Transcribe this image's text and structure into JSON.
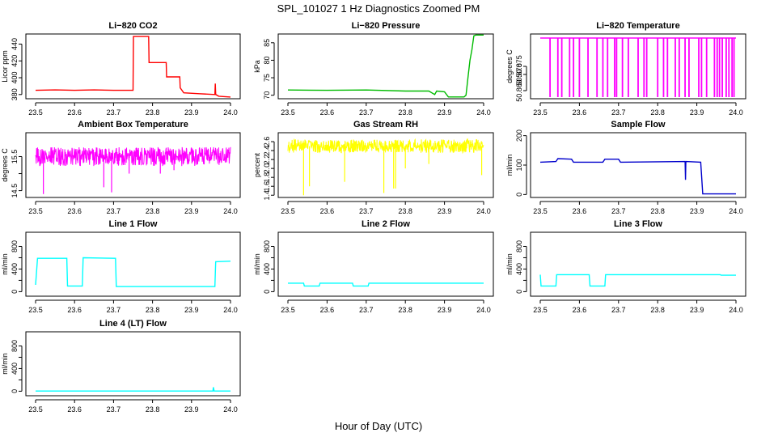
{
  "figure": {
    "title": "SPL_101027  1 Hz Diagnostics Zoomed PM",
    "xlabel": "Hour of Day (UTC)"
  },
  "chart_data": [
    {
      "type": "line",
      "title": "Li−820 CO2",
      "ylabel": "Licor ppm",
      "color": "#ff0000",
      "xlim": [
        23.5,
        24.0
      ],
      "ylim": [
        375,
        452
      ],
      "xticks": [
        "23.5",
        "23.6",
        "23.7",
        "23.8",
        "23.9",
        "24.0"
      ],
      "yticks": [
        {
          "v": 380,
          "label": "380"
        },
        {
          "v": 400,
          "label": "400"
        },
        {
          "v": 420,
          "label": "420"
        },
        {
          "v": 440,
          "label": "440"
        }
      ],
      "series": [
        {
          "x": [
            23.5,
            23.55,
            23.6,
            23.65,
            23.7,
            23.75,
            23.751,
            23.79,
            23.791,
            23.835,
            23.836,
            23.87,
            23.871,
            23.88,
            23.92,
            23.96,
            23.961,
            23.962,
            23.97,
            24.0
          ],
          "y": [
            385,
            385.5,
            385,
            385.5,
            385,
            385,
            449,
            449,
            418,
            418,
            401,
            401,
            388,
            382,
            381,
            380,
            393,
            380,
            378,
            377
          ]
        }
      ]
    },
    {
      "type": "line",
      "title": "Li−820 Pressure",
      "ylabel": "kPa",
      "color": "#00bb00",
      "xlim": [
        23.5,
        24.0
      ],
      "ylim": [
        69,
        87.5
      ],
      "xticks": [
        "23.5",
        "23.6",
        "23.7",
        "23.8",
        "23.9",
        "24.0"
      ],
      "yticks": [
        {
          "v": 70,
          "label": "70"
        },
        {
          "v": 75,
          "label": "75"
        },
        {
          "v": 80,
          "label": "80"
        },
        {
          "v": 85,
          "label": "85"
        }
      ],
      "series": [
        {
          "x": [
            23.5,
            23.6,
            23.7,
            23.8,
            23.86,
            23.875,
            23.88,
            23.9,
            23.91,
            23.95,
            23.955,
            23.96,
            23.965,
            23.97,
            23.975,
            23.98,
            24.0
          ],
          "y": [
            71.5,
            71.4,
            71.5,
            71.2,
            71.2,
            70.2,
            71.2,
            71,
            69.5,
            69.5,
            70,
            75,
            80,
            83,
            87,
            87.2,
            87.2
          ]
        }
      ]
    },
    {
      "type": "line",
      "title": "Li−820 Temperature",
      "ylabel": "degrees C",
      "color": "#ff00ff",
      "xlim": [
        23.5,
        24.0
      ],
      "ylim": [
        50.855,
        50.895
      ],
      "xticks": [
        "23.5",
        "23.6",
        "23.7",
        "23.8",
        "23.9",
        "24.0"
      ],
      "yticks": [
        {
          "v": 50.86,
          "label": "50.860"
        },
        {
          "v": 50.87,
          "label": "50.870"
        },
        {
          "v": 50.875,
          "label": "50.875"
        }
      ],
      "base": 50.8925,
      "low": 50.856,
      "spikes": [
        23.525,
        23.545,
        23.555,
        23.575,
        23.585,
        23.6,
        23.622,
        23.645,
        23.66,
        23.672,
        23.69,
        23.695,
        23.71,
        23.725,
        23.75,
        23.765,
        23.772,
        23.8,
        23.815,
        23.825,
        23.845,
        23.855,
        23.87,
        23.88,
        23.905,
        23.912,
        23.925,
        23.945,
        23.952,
        23.958,
        23.965,
        23.975,
        23.982,
        23.99,
        23.995
      ]
    },
    {
      "type": "line",
      "title": "Ambient Box Temperature",
      "ylabel": "degrees C",
      "color": "#ff00ff",
      "xlim": [
        23.5,
        24.0
      ],
      "ylim": [
        14.3,
        16.2
      ],
      "xticks": [
        "23.5",
        "23.6",
        "23.7",
        "23.8",
        "23.9",
        "24.0"
      ],
      "yticks": [
        {
          "v": 14.5,
          "label": "14.5"
        },
        {
          "v": 15.0,
          "label": ""
        },
        {
          "v": 15.5,
          "label": "15.5"
        }
      ],
      "noise": {
        "center": 15.5,
        "amp": 0.28,
        "n": 600
      },
      "spikes": [
        {
          "x": 23.52,
          "y": 14.4
        },
        {
          "x": 23.675,
          "y": 14.6
        },
        {
          "x": 23.695,
          "y": 14.45
        },
        {
          "x": 23.74,
          "y": 15.0
        },
        {
          "x": 23.82,
          "y": 15.0
        },
        {
          "x": 23.855,
          "y": 15.1
        }
      ]
    },
    {
      "type": "line",
      "title": "Gas Stream RH",
      "ylabel": "percent",
      "color": "#ffff00",
      "xlim": [
        23.5,
        24.0
      ],
      "ylim": [
        1.35,
        2.8
      ],
      "xticks": [
        "23.5",
        "23.6",
        "23.7",
        "23.8",
        "23.9",
        "24.0"
      ],
      "yticks": [
        {
          "v": 1.4,
          "label": "1.4"
        },
        {
          "v": 1.6,
          "label": "1.6"
        },
        {
          "v": 1.8,
          "label": "1.8"
        },
        {
          "v": 2.0,
          "label": "2.0"
        },
        {
          "v": 2.2,
          "label": "2.2"
        },
        {
          "v": 2.4,
          "label": "2.4"
        },
        {
          "v": 2.6,
          "label": "2.6"
        }
      ],
      "noise": {
        "center": 2.5,
        "amp": 0.15,
        "n": 600
      },
      "spikes": [
        {
          "x": 23.54,
          "y": 1.4
        },
        {
          "x": 23.555,
          "y": 1.6
        },
        {
          "x": 23.645,
          "y": 1.7
        },
        {
          "x": 23.745,
          "y": 1.45
        },
        {
          "x": 23.77,
          "y": 1.55
        },
        {
          "x": 23.775,
          "y": 1.55
        },
        {
          "x": 23.8,
          "y": 2.0
        },
        {
          "x": 23.86,
          "y": 2.1
        },
        {
          "x": 23.995,
          "y": 1.85
        }
      ]
    },
    {
      "type": "line",
      "title": "Sample Flow",
      "ylabel": "ml/min",
      "color": "#0000cc",
      "xlim": [
        23.5,
        24.0
      ],
      "ylim": [
        -10,
        210
      ],
      "xticks": [
        "23.5",
        "23.6",
        "23.7",
        "23.8",
        "23.9",
        "24.0"
      ],
      "yticks": [
        {
          "v": 0,
          "label": "0"
        },
        {
          "v": 100,
          "label": "100"
        },
        {
          "v": 200,
          "label": "200"
        }
      ],
      "series": [
        {
          "x": [
            23.5,
            23.54,
            23.545,
            23.58,
            23.585,
            23.66,
            23.665,
            23.7,
            23.705,
            23.87,
            23.871,
            23.872,
            23.873,
            23.91,
            23.915,
            24.0
          ],
          "y": [
            110,
            112,
            122,
            120,
            110,
            110,
            120,
            120,
            110,
            112,
            50,
            110,
            112,
            110,
            2,
            2
          ]
        }
      ]
    },
    {
      "type": "line",
      "title": "Line 1 Flow",
      "ylabel": "ml/min",
      "color": "#00ffff",
      "xlim": [
        23.5,
        24.0
      ],
      "ylim": [
        -80,
        1050
      ],
      "xticks": [
        "23.5",
        "23.6",
        "23.7",
        "23.8",
        "23.9",
        "24.0"
      ],
      "yticks": [
        {
          "v": 0,
          "label": "0"
        },
        {
          "v": 200,
          "label": ""
        },
        {
          "v": 400,
          "label": "400"
        },
        {
          "v": 600,
          "label": ""
        },
        {
          "v": 800,
          "label": "800"
        }
      ],
      "series": [
        {
          "x": [
            23.5,
            23.505,
            23.58,
            23.582,
            23.62,
            23.622,
            23.705,
            23.707,
            23.96,
            23.962,
            24.0
          ],
          "y": [
            120,
            590,
            590,
            100,
            100,
            600,
            590,
            90,
            90,
            530,
            540
          ]
        }
      ]
    },
    {
      "type": "line",
      "title": "Line 2 Flow",
      "ylabel": "ml/min",
      "color": "#00ffff",
      "xlim": [
        23.5,
        24.0
      ],
      "ylim": [
        -80,
        1050
      ],
      "xticks": [
        "23.5",
        "23.6",
        "23.7",
        "23.8",
        "23.9",
        "24.0"
      ],
      "yticks": [
        {
          "v": 0,
          "label": "0"
        },
        {
          "v": 200,
          "label": ""
        },
        {
          "v": 400,
          "label": "400"
        },
        {
          "v": 600,
          "label": ""
        },
        {
          "v": 800,
          "label": "800"
        }
      ],
      "series": [
        {
          "x": [
            23.5,
            23.54,
            23.542,
            23.58,
            23.582,
            23.665,
            23.667,
            23.705,
            23.707,
            24.0
          ],
          "y": [
            150,
            150,
            100,
            100,
            150,
            150,
            100,
            100,
            150,
            150
          ]
        }
      ]
    },
    {
      "type": "line",
      "title": "Line 3 Flow",
      "ylabel": "ml/min",
      "color": "#00ffff",
      "xlim": [
        23.5,
        24.0
      ],
      "ylim": [
        -80,
        1050
      ],
      "xticks": [
        "23.5",
        "23.6",
        "23.7",
        "23.8",
        "23.9",
        "24.0"
      ],
      "yticks": [
        {
          "v": 0,
          "label": "0"
        },
        {
          "v": 200,
          "label": ""
        },
        {
          "v": 400,
          "label": "400"
        },
        {
          "v": 600,
          "label": ""
        },
        {
          "v": 800,
          "label": "800"
        }
      ],
      "series": [
        {
          "x": [
            23.5,
            23.502,
            23.503,
            23.54,
            23.542,
            23.625,
            23.627,
            23.665,
            23.667,
            23.96,
            23.962,
            24.0
          ],
          "y": [
            300,
            100,
            100,
            100,
            300,
            300,
            100,
            100,
            300,
            300,
            290,
            290
          ]
        }
      ]
    },
    {
      "type": "line",
      "title": "Line 4 (LT) Flow",
      "ylabel": "ml/min",
      "color": "#00ffff",
      "xlim": [
        23.5,
        24.0
      ],
      "ylim": [
        -80,
        1050
      ],
      "xticks": [
        "23.5",
        "23.6",
        "23.7",
        "23.8",
        "23.9",
        "24.0"
      ],
      "yticks": [
        {
          "v": 0,
          "label": "0"
        },
        {
          "v": 200,
          "label": ""
        },
        {
          "v": 400,
          "label": "400"
        },
        {
          "v": 600,
          "label": ""
        },
        {
          "v": 800,
          "label": "800"
        }
      ],
      "series": [
        {
          "x": [
            23.5,
            23.9,
            23.955,
            23.956,
            23.958,
            24.0
          ],
          "y": [
            3,
            3,
            3,
            70,
            3,
            3
          ]
        }
      ]
    }
  ]
}
